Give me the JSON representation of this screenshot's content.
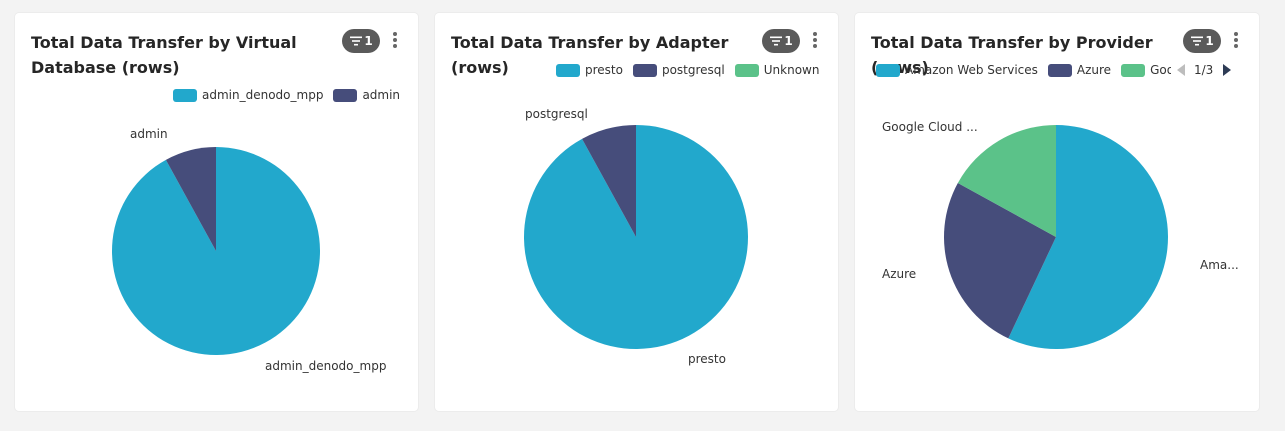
{
  "colors": {
    "teal": "#22a8cc",
    "navy": "#464d7b",
    "green": "#5bc289"
  },
  "cards": [
    {
      "title": "Total Data Transfer by Virtual Database (rows)",
      "filter_count": "1"
    },
    {
      "title": "Total Data Transfer by Adapter (rows)",
      "filter_count": "1"
    },
    {
      "title": "Total Data Transfer by Provider (rows)",
      "filter_count": "1",
      "legend_page": "1/3"
    }
  ],
  "chart_data": [
    {
      "type": "pie",
      "title": "Total Data Transfer by Virtual Database (rows)",
      "legend": [
        "admin_denodo_mpp",
        "admin"
      ],
      "slices": [
        {
          "label": "admin_denodo_mpp",
          "value": 92,
          "color": "#22a8cc"
        },
        {
          "label": "admin",
          "value": 8,
          "color": "#464d7b"
        }
      ]
    },
    {
      "type": "pie",
      "title": "Total Data Transfer by Adapter (rows)",
      "legend": [
        "presto",
        "postgresql",
        "Unknown"
      ],
      "slices": [
        {
          "label": "presto",
          "value": 92,
          "color": "#22a8cc"
        },
        {
          "label": "postgresql",
          "value": 8,
          "color": "#464d7b"
        },
        {
          "label": "Unknown",
          "value": 0,
          "color": "#5bc289"
        }
      ]
    },
    {
      "type": "pie",
      "title": "Total Data Transfer by Provider (rows)",
      "legend": [
        "Amazon Web Services",
        "Azure",
        "Goo"
      ],
      "slices": [
        {
          "label": "Ama...",
          "value": 57,
          "color": "#22a8cc"
        },
        {
          "label": "Azure",
          "value": 26,
          "color": "#464d7b"
        },
        {
          "label": "Google Cloud ...",
          "value": 17,
          "color": "#5bc289"
        }
      ]
    }
  ]
}
